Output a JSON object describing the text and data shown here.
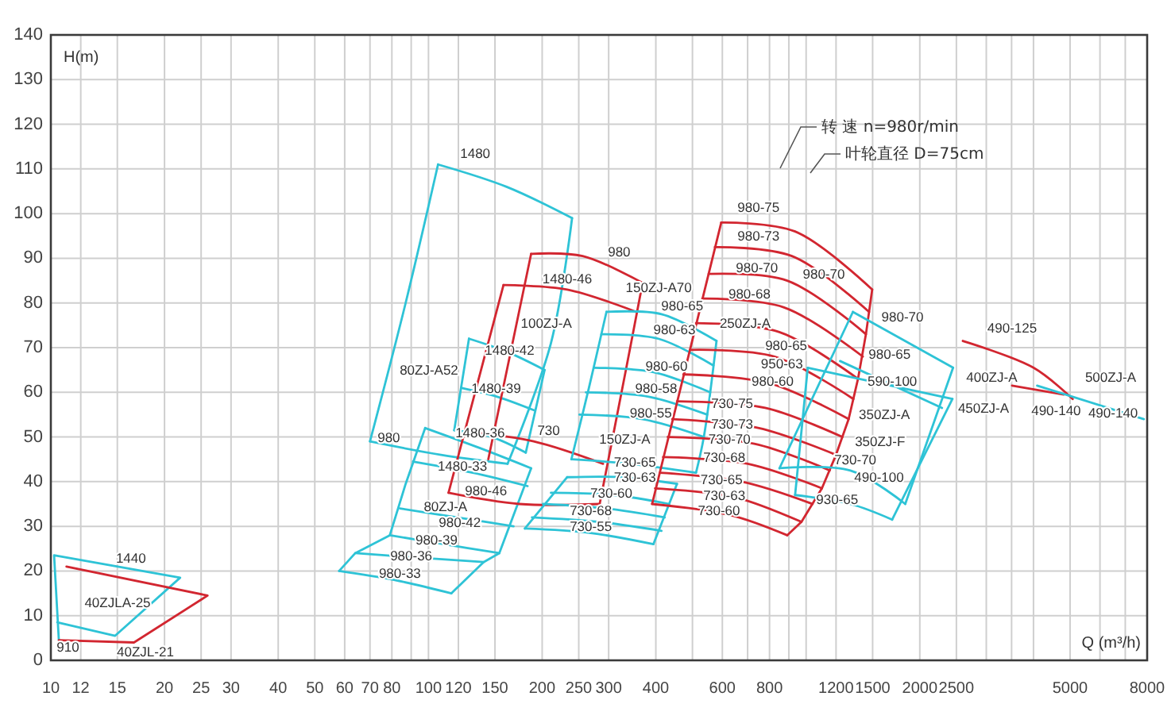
{
  "chart_data": {
    "type": "line",
    "xlabel": "Q (m³/h)",
    "ylabel": "H(m)",
    "log": "x",
    "xlim": [
      10,
      8000
    ],
    "ylim": [
      0,
      140
    ],
    "xticks": [
      10,
      12,
      15,
      20,
      25,
      30,
      40,
      50,
      60,
      70,
      80,
      {
        "value": 90,
        "label": null
      },
      100,
      120,
      150,
      200,
      250,
      300,
      400,
      {
        "value": 500,
        "label": null
      },
      600,
      {
        "value": 700,
        "label": null
      },
      800,
      {
        "value": 900,
        "label": null
      },
      {
        "value": 1000,
        "label": null
      },
      1200,
      1500,
      2000,
      2500,
      {
        "value": 3000,
        "label": null
      },
      {
        "value": 3500,
        "label": null
      },
      {
        "value": 4000,
        "label": null
      },
      5000,
      {
        "value": 6000,
        "label": null
      },
      {
        "value": 7000,
        "label": null
      },
      8000
    ],
    "yticks": [
      0,
      10,
      20,
      30,
      40,
      50,
      60,
      70,
      80,
      90,
      100,
      110,
      120,
      130,
      140
    ],
    "grid": true,
    "series": [
      {
        "color": "#2ec3d6",
        "x": [
          10.5,
          10.2,
          22,
          14.8,
          10.4
        ],
        "values": [
          4.5,
          23.5,
          18.5,
          5.5,
          8.5
        ]
      },
      {
        "color": "#d22630",
        "x": [
          11,
          26,
          16.6,
          10.5
        ],
        "values": [
          21,
          14.5,
          4,
          4.5
        ]
      },
      {
        "color": "#2ec3d6",
        "x": [
          106,
          161,
          240
        ],
        "values": [
          111,
          106,
          99
        ]
      },
      {
        "color": "#2ec3d6",
        "x": [
          240,
          211,
          162
        ],
        "values": [
          99,
          71,
          44
        ]
      },
      {
        "color": "#2ec3d6",
        "x": [
          162,
          108,
          70
        ],
        "values": [
          44,
          46,
          49
        ]
      },
      {
        "color": "#2ec3d6",
        "x": [
          70,
          87,
          106
        ],
        "values": [
          49,
          80,
          111
        ]
      },
      {
        "color": "#2ec3d6",
        "x": [
          128,
          162,
          203
        ],
        "values": [
          72,
          69,
          65
        ]
      },
      {
        "color": "#2ec3d6",
        "x": [
          122,
          152,
          190
        ],
        "values": [
          61,
          59,
          56
        ]
      },
      {
        "color": "#2ec3d6",
        "x": [
          117,
          147,
          181
        ],
        "values": [
          51.5,
          50,
          46.5
        ]
      },
      {
        "color": "#2ec3d6",
        "x": [
          128,
          117
        ],
        "values": [
          72,
          51.5
        ]
      },
      {
        "color": "#2ec3d6",
        "x": [
          203,
          181
        ],
        "values": [
          65,
          46.5
        ]
      },
      {
        "color": "#2ec3d6",
        "x": [
          98,
          137,
          187
        ],
        "values": [
          52,
          47.5,
          43
        ]
      },
      {
        "color": "#2ec3d6",
        "x": [
          91,
          131,
          183
        ],
        "values": [
          44.5,
          42,
          39
        ]
      },
      {
        "color": "#2ec3d6",
        "x": [
          84,
          119,
          168
        ],
        "values": [
          34,
          32,
          30
        ]
      },
      {
        "color": "#2ec3d6",
        "x": [
          79,
          110,
          154
        ],
        "values": [
          28,
          26,
          24
        ]
      },
      {
        "color": "#2ec3d6",
        "x": [
          64,
          94,
          140
        ],
        "values": [
          24,
          23,
          22
        ]
      },
      {
        "color": "#2ec3d6",
        "x": [
          58,
          81,
          115
        ],
        "values": [
          20,
          18,
          15
        ]
      },
      {
        "color": "#2ec3d6",
        "x": [
          98,
          87,
          79,
          64,
          58
        ],
        "values": [
          52,
          39.5,
          28,
          24,
          20
        ]
      },
      {
        "color": "#2ec3d6",
        "x": [
          187,
          154,
          140,
          115
        ],
        "values": [
          43,
          24,
          22,
          15
        ]
      },
      {
        "color": "#d22630",
        "x": [
          187,
          256,
          369
        ],
        "values": [
          91,
          90.5,
          84.5
        ]
      },
      {
        "color": "#d22630",
        "x": [
          158,
          233,
          355
        ],
        "values": [
          84,
          83,
          78
        ]
      },
      {
        "color": "#d22630",
        "x": [
          369,
          335,
          284
        ],
        "values": [
          84.5,
          66,
          35
        ]
      },
      {
        "color": "#d22630",
        "x": [
          187,
          144
        ],
        "values": [
          91,
          45
        ]
      },
      {
        "color": "#d22630",
        "x": [
          158,
          113
        ],
        "values": [
          84,
          37.5
        ]
      },
      {
        "color": "#d22630",
        "x": [
          131,
          190,
          290
        ],
        "values": [
          51,
          49,
          44
        ]
      },
      {
        "color": "#d22630",
        "x": [
          113,
          174,
          284
        ],
        "values": [
          37.5,
          35,
          35
        ]
      },
      {
        "color": "#2ec3d6",
        "x": [
          296,
          414,
          579
        ],
        "values": [
          78,
          77.5,
          71.5
        ]
      },
      {
        "color": "#2ec3d6",
        "x": [
          287,
          406,
          568
        ],
        "values": [
          73,
          72,
          66
        ]
      },
      {
        "color": "#2ec3d6",
        "x": [
          274,
          394,
          557
        ],
        "values": [
          65.5,
          64.5,
          60
        ]
      },
      {
        "color": "#2ec3d6",
        "x": [
          261,
          383,
          547
        ],
        "values": [
          60,
          59,
          55
        ]
      },
      {
        "color": "#2ec3d6",
        "x": [
          251,
          369,
          536
        ],
        "values": [
          55,
          54,
          50
        ]
      },
      {
        "color": "#2ec3d6",
        "x": [
          239,
          341,
          511
        ],
        "values": [
          45,
          44,
          42
        ]
      },
      {
        "color": "#2ec3d6",
        "x": [
          296,
          266,
          239
        ],
        "values": [
          78,
          61,
          45
        ]
      },
      {
        "color": "#2ec3d6",
        "x": [
          579,
          536,
          511
        ],
        "values": [
          71.5,
          50,
          42
        ]
      },
      {
        "color": "#2ec3d6",
        "x": [
          233,
          325,
          455
        ],
        "values": [
          41,
          41,
          39.5
        ]
      },
      {
        "color": "#2ec3d6",
        "x": [
          211,
          310,
          434
        ],
        "values": [
          37.5,
          37,
          35
        ]
      },
      {
        "color": "#2ec3d6",
        "x": [
          201,
          296,
          422
        ],
        "values": [
          35,
          34,
          32
        ]
      },
      {
        "color": "#2ec3d6",
        "x": [
          188,
          282,
          414
        ],
        "values": [
          32,
          31,
          29
        ]
      },
      {
        "color": "#2ec3d6",
        "x": [
          180,
          269,
          394
        ],
        "values": [
          29.5,
          28.5,
          26
        ]
      },
      {
        "color": "#2ec3d6",
        "x": [
          233,
          180
        ],
        "values": [
          41,
          29.5
        ]
      },
      {
        "color": "#2ec3d6",
        "x": [
          455,
          394
        ],
        "values": [
          39.5,
          26
        ]
      },
      {
        "color": "#d22630",
        "x": [
          596,
          935,
          1496
        ],
        "values": [
          98,
          96,
          83
        ]
      },
      {
        "color": "#d22630",
        "x": [
          573,
          917,
          1468
        ],
        "values": [
          92.5,
          90.5,
          78
        ]
      },
      {
        "color": "#d22630",
        "x": [
          552,
          891,
          1440
        ],
        "values": [
          86.5,
          85,
          73
        ]
      },
      {
        "color": "#d22630",
        "x": [
          531,
          874,
          1413
        ],
        "values": [
          81,
          79,
          68
        ]
      },
      {
        "color": "#d22630",
        "x": [
          511,
          849,
          1372
        ],
        "values": [
          75.5,
          73.5,
          63
        ]
      },
      {
        "color": "#d22630",
        "x": [
          492,
          825,
          1334
        ],
        "values": [
          69.5,
          68,
          58.5
        ]
      },
      {
        "color": "#d22630",
        "x": [
          473,
          802,
          1296
        ],
        "values": [
          64,
          62,
          54
        ]
      },
      {
        "color": "#d22630",
        "x": [
          455,
          779,
          1247
        ],
        "values": [
          58,
          56.5,
          50
        ]
      },
      {
        "color": "#d22630",
        "x": [
          442,
          750,
          1200
        ],
        "values": [
          54,
          52,
          46
        ]
      },
      {
        "color": "#d22630",
        "x": [
          430,
          729,
          1155
        ],
        "values": [
          50,
          48.5,
          42.5
        ]
      },
      {
        "color": "#d22630",
        "x": [
          418,
          701,
          1101
        ],
        "values": [
          45.5,
          44,
          38.5
        ]
      },
      {
        "color": "#d22630",
        "x": [
          410,
          675,
          1040
        ],
        "values": [
          42,
          40,
          35
        ]
      },
      {
        "color": "#d22630",
        "x": [
          398,
          649,
          972
        ],
        "values": [
          38.5,
          36.5,
          31
        ]
      },
      {
        "color": "#d22630",
        "x": [
          391,
          631,
          891
        ],
        "values": [
          35,
          32.5,
          28
        ]
      },
      {
        "color": "#d22630",
        "x": [
          596,
          391
        ],
        "values": [
          98,
          35
        ]
      },
      {
        "color": "#d22630",
        "x": [
          1496,
          1440,
          1372,
          1296,
          1200,
          1101,
          972,
          891
        ],
        "values": [
          83,
          73,
          63,
          54,
          46,
          38.5,
          31,
          28
        ]
      },
      {
        "color": "#2ec3d6",
        "x": [
          1330,
          2450
        ],
        "values": [
          78,
          65.5
        ]
      },
      {
        "color": "#2ec3d6",
        "x": [
          2450,
          1830
        ],
        "values": [
          65.5,
          35
        ]
      },
      {
        "color": "#2ec3d6",
        "x": [
          850,
          1310,
          1830
        ],
        "values": [
          43,
          42.5,
          35
        ]
      },
      {
        "color": "#2ec3d6",
        "x": [
          1330,
          850
        ],
        "values": [
          78,
          43
        ]
      },
      {
        "color": "#2ec3d6",
        "x": [
          1230,
          2290
        ],
        "values": [
          67,
          56.5
        ]
      },
      {
        "color": "#2ec3d6",
        "x": [
          1010,
          2440
        ],
        "values": [
          65.5,
          58.5
        ]
      },
      {
        "color": "#2ec3d6",
        "x": [
          2440,
          1690
        ],
        "values": [
          58.5,
          31.5
        ]
      },
      {
        "color": "#2ec3d6",
        "x": [
          935,
          1310,
          1690
        ],
        "values": [
          37,
          35,
          31.5
        ]
      },
      {
        "color": "#2ec3d6",
        "x": [
          1010,
          935
        ],
        "values": [
          65.5,
          37
        ]
      },
      {
        "color": "#d22630",
        "x": [
          2600,
          4000,
          5080
        ],
        "values": [
          71.5,
          65.5,
          58.5
        ]
      },
      {
        "color": "#d22630",
        "x": [
          3510,
          4810
        ],
        "values": [
          61.5,
          59.5
        ]
      },
      {
        "color": "#2ec3d6",
        "x": [
          4090,
          7840
        ],
        "values": [
          61.5,
          54
        ]
      }
    ],
    "annotations": [
      "转 速 n=980r/min",
      "叶轮直径 D=75cm",
      "1440",
      "40ZJLA-25",
      "40ZJL-21",
      "1480",
      "80ZJ-A52",
      "80ZJ-A",
      "730",
      "100ZJ-A",
      "980",
      "150ZJ-A70",
      "980-65",
      "980-63",
      "980-60",
      "980-58",
      "150ZJ-A",
      "980-75",
      "980-73",
      "250ZJ-A",
      "980-70",
      "980-65",
      "350ZJ-A",
      "350ZJ-F",
      "730-70",
      "490-125",
      "400ZJ-A",
      "450ZJ-A",
      "500ZJ-A",
      "490-140",
      "980-65",
      {
        "text": "910",
        "x": 11.1,
        "y": 3
      },
      {
        "text": "980",
        "x": 78.5,
        "y": 50
      },
      {
        "text": "1480-42",
        "x": 164,
        "y": 69.5
      },
      {
        "text": "1480-39",
        "x": 151,
        "y": 61
      },
      {
        "text": "1480-36",
        "x": 137,
        "y": 51
      },
      {
        "text": "1480-33",
        "x": 123,
        "y": 43.5
      },
      {
        "text": "980-46",
        "x": 142,
        "y": 38
      },
      {
        "text": "980-42",
        "x": 121,
        "y": 31
      },
      {
        "text": "980-39",
        "x": 105,
        "y": 27
      },
      {
        "text": "980-36",
        "x": 90,
        "y": 23.5
      },
      {
        "text": "980-33",
        "x": 84,
        "y": 19.5
      },
      {
        "text": "1480-46",
        "x": 233,
        "y": 85.5
      },
      {
        "text": "980-55",
        "x": 388,
        "y": 55.5
      },
      {
        "text": "730-65",
        "x": 352,
        "y": 44.5
      },
      {
        "text": "730-63",
        "x": 352,
        "y": 41
      },
      {
        "text": "730-60",
        "x": 305,
        "y": 37.5
      },
      {
        "text": "730-68",
        "x": 269,
        "y": 33.5
      },
      {
        "text": "730-55",
        "x": 269,
        "y": 30
      },
      {
        "text": "980-70",
        "x": 741,
        "y": 88
      },
      {
        "text": "980-68",
        "x": 708,
        "y": 82
      },
      {
        "text": "950-63",
        "x": 863,
        "y": 66.5
      },
      {
        "text": "980-60",
        "x": 815,
        "y": 62.5
      },
      {
        "text": "730-75",
        "x": 637,
        "y": 57.5
      },
      {
        "text": "730-73",
        "x": 637,
        "y": 53
      },
      {
        "text": "730-70",
        "x": 627,
        "y": 49.5
      },
      {
        "text": "730-68",
        "x": 607,
        "y": 45.5
      },
      {
        "text": "730-65",
        "x": 597,
        "y": 40.5
      },
      {
        "text": "730-63",
        "x": 607,
        "y": 37
      },
      {
        "text": "730-60",
        "x": 588,
        "y": 33.5
      },
      {
        "text": "980-70",
        "x": 1114,
        "y": 86.5
      },
      {
        "text": "590-100",
        "x": 1691,
        "y": 62.5
      },
      {
        "text": "490-100",
        "x": 1560,
        "y": 41
      },
      {
        "text": "930-65",
        "x": 1208,
        "y": 36
      },
      {
        "text": "490-140",
        "x": 6500,
        "y": 55.5
      }
    ]
  }
}
